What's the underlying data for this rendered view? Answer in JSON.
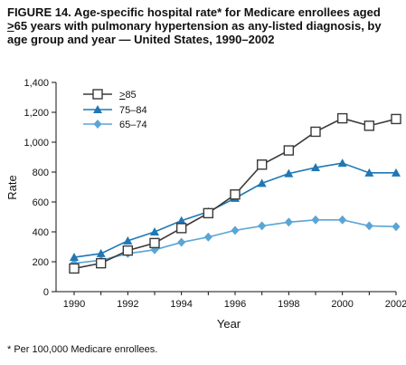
{
  "title": {
    "pre": "FIGURE 14. Age-specific hospital rate* for Medicare enrollees aged ",
    "ge_symbol": ">",
    "post": "65 years with pulmonary hypertension as any-listed diagnosis, by age group and year — United States, 1990–2002"
  },
  "footnote": "* Per 100,000 Medicare enrollees.",
  "chart_data": {
    "type": "line",
    "xlabel": "Year",
    "ylabel": "Rate",
    "ylim": [
      0,
      1400
    ],
    "yticks": [
      0,
      200,
      400,
      600,
      800,
      1000,
      1200,
      1400
    ],
    "ytick_labels": [
      "0",
      "200",
      "400",
      "600",
      "800",
      "1,000",
      "1,200",
      "1,400"
    ],
    "xlim": [
      1990,
      2002
    ],
    "xticks": [
      1990,
      1992,
      1994,
      1996,
      1998,
      2000,
      2002
    ],
    "x": [
      1990,
      1991,
      1992,
      1993,
      1994,
      1995,
      1996,
      1997,
      1998,
      1999,
      2000,
      2001,
      2002
    ],
    "grid": false,
    "legend_position": "top-left",
    "series": [
      {
        "name": ">85",
        "legend_ge": ">",
        "legend_num": "85",
        "marker": "open-square",
        "color": "#3a3a3a",
        "values": [
          155,
          190,
          275,
          325,
          425,
          525,
          650,
          850,
          945,
          1070,
          1160,
          1110,
          1155
        ]
      },
      {
        "name": "75–84",
        "marker": "triangle",
        "color": "#1f78b4",
        "values": [
          230,
          255,
          340,
          400,
          475,
          535,
          625,
          725,
          790,
          830,
          860,
          795,
          795
        ]
      },
      {
        "name": "65–74",
        "marker": "diamond",
        "color": "#5aa5d6",
        "values": [
          190,
          210,
          255,
          280,
          330,
          365,
          410,
          440,
          465,
          480,
          480,
          440,
          435
        ]
      }
    ]
  }
}
